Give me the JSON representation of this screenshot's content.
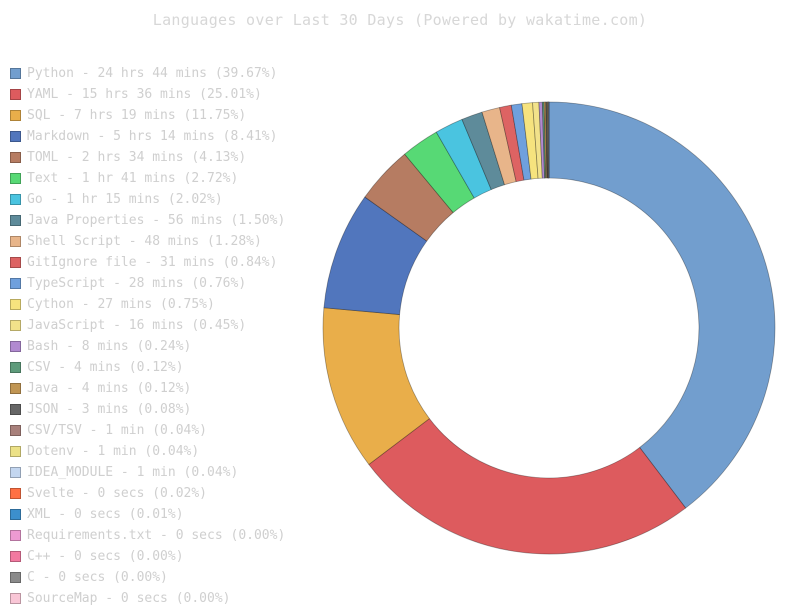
{
  "chart_data": {
    "type": "pie",
    "title": "Languages over Last 30 Days (Powered by wakatime.com)",
    "legend_position": "left",
    "style": "donut",
    "series": [
      {
        "label": "Python - 24 hrs 44 mins (39.67%)",
        "name": "Python",
        "value": 39.67,
        "color": "#729ece"
      },
      {
        "label": "YAML - 15 hrs 36 mins (25.01%)",
        "name": "YAML",
        "value": 25.01,
        "color": "#dd5b5e"
      },
      {
        "label": "SQL - 7 hrs 19 mins (11.75%)",
        "name": "SQL",
        "value": 11.75,
        "color": "#e9ae4a"
      },
      {
        "label": "Markdown - 5 hrs 14 mins (8.41%)",
        "name": "Markdown",
        "value": 8.41,
        "color": "#5176bd"
      },
      {
        "label": "TOML - 2 hrs 34 mins (4.13%)",
        "name": "TOML",
        "value": 4.13,
        "color": "#b67c62"
      },
      {
        "label": "Text - 1 hr 41 mins (2.72%)",
        "name": "Text",
        "value": 2.72,
        "color": "#57d975"
      },
      {
        "label": "Go - 1 hr 15 mins (2.02%)",
        "name": "Go",
        "value": 2.02,
        "color": "#4ac4e0"
      },
      {
        "label": "Java Properties - 56 mins (1.50%)",
        "name": "Java Properties",
        "value": 1.5,
        "color": "#5e8b9a"
      },
      {
        "label": "Shell Script - 48 mins (1.28%)",
        "name": "Shell Script",
        "value": 1.28,
        "color": "#e8b58a"
      },
      {
        "label": "GitIgnore file - 31 mins (0.84%)",
        "name": "GitIgnore file",
        "value": 0.84,
        "color": "#dd6363"
      },
      {
        "label": "TypeScript - 28 mins (0.76%)",
        "name": "TypeScript",
        "value": 0.76,
        "color": "#6fa0dd"
      },
      {
        "label": "Cython - 27 mins (0.75%)",
        "name": "Cython",
        "value": 0.75,
        "color": "#f6e37e"
      },
      {
        "label": "JavaScript - 16 mins (0.45%)",
        "name": "JavaScript",
        "value": 0.45,
        "color": "#f2e28a"
      },
      {
        "label": "Bash - 8 mins (0.24%)",
        "name": "Bash",
        "value": 0.24,
        "color": "#b18ad0"
      },
      {
        "label": "CSV - 4 mins (0.12%)",
        "name": "CSV",
        "value": 0.12,
        "color": "#5e9b7b"
      },
      {
        "label": "Java - 4 mins (0.12%)",
        "name": "Java",
        "value": 0.12,
        "color": "#c09553"
      },
      {
        "label": "JSON - 3 mins (0.08%)",
        "name": "JSON",
        "value": 0.08,
        "color": "#666666"
      },
      {
        "label": "CSV/TSV - 1 min (0.04%)",
        "name": "CSV/TSV",
        "value": 0.04,
        "color": "#a8807b"
      },
      {
        "label": "Dotenv - 1 min (0.04%)",
        "name": "Dotenv",
        "value": 0.04,
        "color": "#ece187"
      },
      {
        "label": "IDEA_MODULE - 1 min (0.04%)",
        "name": "IDEA_MODULE",
        "value": 0.04,
        "color": "#c3d6f0"
      },
      {
        "label": "Svelte - 0 secs (0.02%)",
        "name": "Svelte",
        "value": 0.02,
        "color": "#ff7043"
      },
      {
        "label": "XML - 0 secs (0.01%)",
        "name": "XML",
        "value": 0.01,
        "color": "#3c8fcd"
      },
      {
        "label": "Requirements.txt - 0 secs (0.00%)",
        "name": "Requirements.txt",
        "value": 0.0,
        "color": "#ee9ad2"
      },
      {
        "label": "C++ - 0 secs (0.00%)",
        "name": "C++",
        "value": 0.0,
        "color": "#f279a0"
      },
      {
        "label": "C - 0 secs (0.00%)",
        "name": "C",
        "value": 0.0,
        "color": "#8a8a8a"
      },
      {
        "label": "SourceMap - 0 secs (0.00%)",
        "name": "SourceMap",
        "value": 0.0,
        "color": "#f9c6d6"
      }
    ]
  }
}
